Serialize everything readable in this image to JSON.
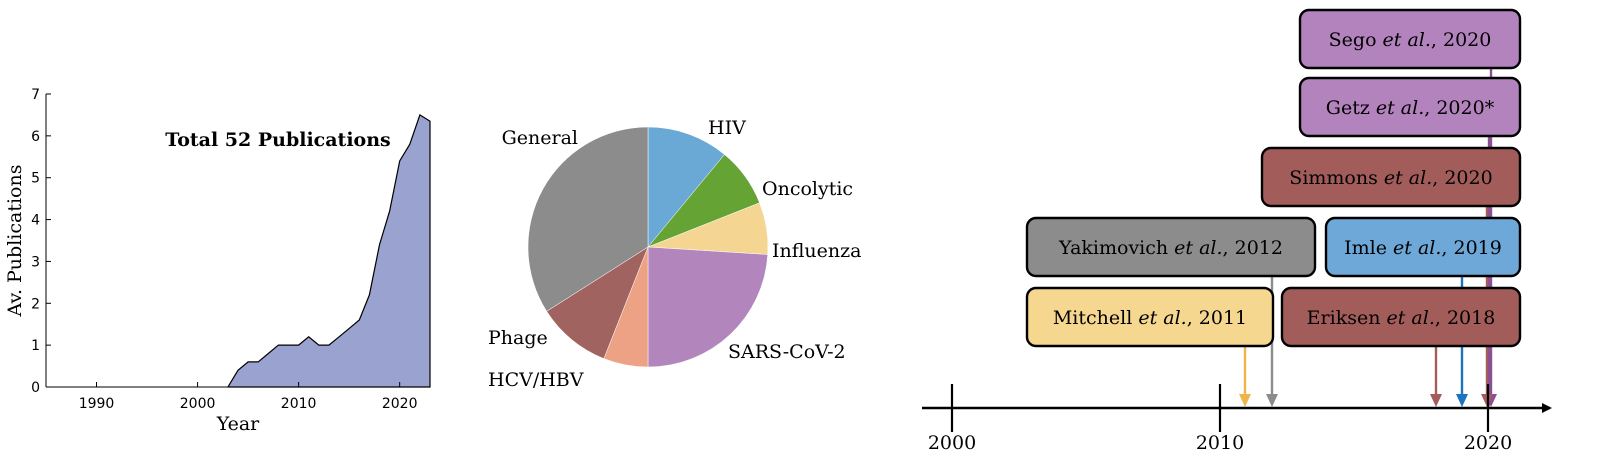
{
  "chart_data": [
    {
      "type": "area",
      "title": "",
      "annotation": "Total 52 Publications",
      "xlabel": "Year",
      "ylabel": "Av. Publications",
      "xlim": [
        1985,
        2023
      ],
      "ylim": [
        0,
        7
      ],
      "xticks": [
        1990,
        2000,
        2010,
        2020
      ],
      "yticks": [
        0,
        1,
        2,
        3,
        4,
        5,
        6,
        7
      ],
      "fill_color": "#9aa3cf",
      "x": [
        2003,
        2004,
        2005,
        2006,
        2007,
        2008,
        2009,
        2010,
        2011,
        2012,
        2013,
        2014,
        2015,
        2016,
        2017,
        2018,
        2019,
        2020,
        2021,
        2022,
        2023
      ],
      "y": [
        0,
        0.4,
        0.6,
        0.6,
        0.8,
        1.0,
        1.0,
        1.0,
        1.2,
        1.0,
        1.0,
        1.2,
        1.4,
        1.6,
        2.2,
        3.4,
        4.2,
        5.4,
        5.8,
        6.5,
        6.35
      ]
    },
    {
      "type": "pie",
      "slices": [
        {
          "label": "HIV",
          "value": 11,
          "color": "#6aa8d6"
        },
        {
          "label": "Oncolytic",
          "value": 8,
          "color": "#66a335"
        },
        {
          "label": "Influenza",
          "value": 7,
          "color": "#f4d692"
        },
        {
          "label": "SARS-CoV-2",
          "value": 24,
          "color": "#b285bc"
        },
        {
          "label": "HCV/HBV",
          "value": 6,
          "color": "#eea285"
        },
        {
          "label": "Phage",
          "value": 10,
          "color": "#a0635f"
        },
        {
          "label": "General",
          "value": 34,
          "color": "#8c8c8c"
        }
      ]
    },
    {
      "type": "timeline",
      "axis_ticks": [
        2000,
        2010,
        2020
      ],
      "xlim": [
        1999,
        2022.4
      ],
      "events": [
        {
          "author": "Sego",
          "suffix": "2020",
          "year": 2020,
          "color": "#b383bd",
          "line_color": "#8c4f94"
        },
        {
          "author": "Getz",
          "suffix": "2020*",
          "year": 2020,
          "color": "#b383bd",
          "line_color": "#8c4f94"
        },
        {
          "author": "Simmons",
          "suffix": "2020",
          "year": 2020,
          "color": "#a25d5b",
          "line_color": "#a25d5b"
        },
        {
          "author": "Yakimovich",
          "suffix": "2012",
          "year": 2012,
          "color": "#8c8c8c",
          "line_color": "#8c8c8c"
        },
        {
          "author": "Imle",
          "suffix": "2019",
          "year": 2019,
          "color": "#6ea8d8",
          "line_color": "#1a74c0"
        },
        {
          "author": "Mitchell",
          "suffix": "2011",
          "year": 2011,
          "color": "#f6d78f",
          "line_color": "#eeb54b"
        },
        {
          "author": "Eriksen",
          "suffix": "2018",
          "year": 2018,
          "color": "#a25d5b",
          "line_color": "#a25d5b"
        }
      ],
      "etal": "et al."
    }
  ]
}
